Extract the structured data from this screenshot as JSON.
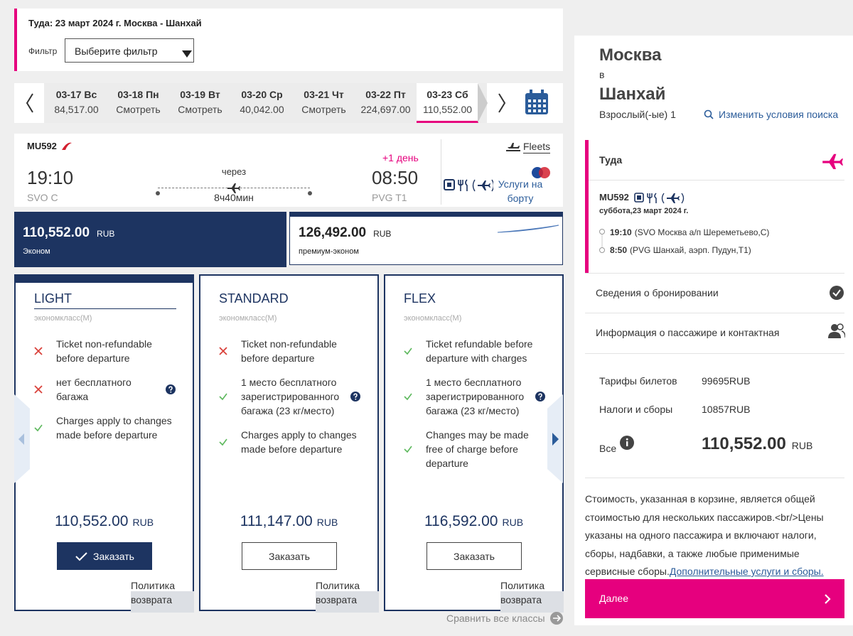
{
  "header": {
    "title": "Туда: 23 март 2024 г. Москва - Шанхай",
    "filter_label": "Фильтр",
    "filter_placeholder": "Выберите фильтр"
  },
  "dates": [
    {
      "date": "03-17 Вс",
      "price": "84,517.00"
    },
    {
      "date": "03-18 Пн",
      "price": "Смотреть"
    },
    {
      "date": "03-19 Вт",
      "price": "Смотреть"
    },
    {
      "date": "03-20 Ср",
      "price": "40,042.00"
    },
    {
      "date": "03-21 Чт",
      "price": "Смотреть"
    },
    {
      "date": "03-22 Пт",
      "price": "224,697.00"
    },
    {
      "date": "03-23 Сб",
      "price": "110,552.00",
      "selected": true
    }
  ],
  "flight": {
    "number": "MU592",
    "fleets": "Fleets",
    "dep_time": "19:10",
    "dep_airport": "SVO C",
    "via": "через",
    "duration": "8ч40мин",
    "plus_day": "+1 день",
    "arr_time": "08:50",
    "arr_airport": "PVG T1",
    "services": "Услуги на борту"
  },
  "cabins": [
    {
      "price": "110,552.00",
      "currency": "RUB",
      "name": "Эконом",
      "selected": true
    },
    {
      "price": "126,492.00",
      "currency": "RUB",
      "name": "премиум-эконом"
    }
  ],
  "fares": [
    {
      "name": "LIGHT",
      "class": "экономкласс(M)",
      "features": [
        {
          "ok": false,
          "text": "Ticket non-refundable before departure"
        },
        {
          "ok": false,
          "text": "нет бесплатного багажа",
          "help": true
        },
        {
          "ok": true,
          "text": "Charges apply to changes made before departure"
        }
      ],
      "price": "110,552.00",
      "currency": "RUB",
      "button": "Заказать",
      "refund": "Политика возврата",
      "selected": true
    },
    {
      "name": "STANDARD",
      "class": "экономкласс(M)",
      "features": [
        {
          "ok": false,
          "text": "Ticket non-refundable before departure"
        },
        {
          "ok": true,
          "text": "1 место бесплатного зарегистрированного багажа (23 кг/место)",
          "help": true
        },
        {
          "ok": true,
          "text": "Charges apply to changes made before departure"
        }
      ],
      "price": "111,147.00",
      "currency": "RUB",
      "button": "Заказать",
      "refund": "Политика возврата"
    },
    {
      "name": "FLEX",
      "class": "экономкласс(M)",
      "features": [
        {
          "ok": true,
          "text": "Ticket refundable before departure with charges"
        },
        {
          "ok": true,
          "text": "1 место бесплатного зарегистрированного багажа (23 кг/место)",
          "help": true
        },
        {
          "ok": true,
          "text": "Changes may be made free of charge before departure"
        }
      ],
      "price": "116,592.00",
      "currency": "RUB",
      "button": "Заказать",
      "refund": "Политика возврата"
    }
  ],
  "compare": "Сравнить все классы",
  "summary": {
    "from": "Москва",
    "to_word": "в",
    "to": "Шанхай",
    "passengers": "Взрослый(-ые) 1",
    "change_search": "Изменить условия поиска",
    "direction": "Туда",
    "flight_number": "MU592",
    "date": "суббота,23 март 2024 г.",
    "segments": [
      {
        "time": "19:10",
        "place": "(SVO Москва а/п Шереметьево,С)"
      },
      {
        "time": "8:50",
        "place": "(PVG Шанхай, аэрп. Пудун,T1)"
      }
    ],
    "booking_details": "Сведения о бронировании",
    "passenger_info": "Информация о пассажире и контактная",
    "fares_label": "Тарифы билетов",
    "fares_value": "99695RUB",
    "taxes_label": "Налоги и сборы",
    "taxes_value": "10857RUB",
    "total_label": "Все",
    "total_value": "110,552.00",
    "total_currency": "RUB",
    "note": "Стоимость, указанная в корзине, является общей стоимостью для нескольких пассажиров.<br/>Цены указаны на одного пассажира и включают налоги, сборы, надбавки, а также любые применимые сервисные сборы.",
    "note_link": "Дополнительные услуги и сборы.",
    "next": "Далее"
  }
}
